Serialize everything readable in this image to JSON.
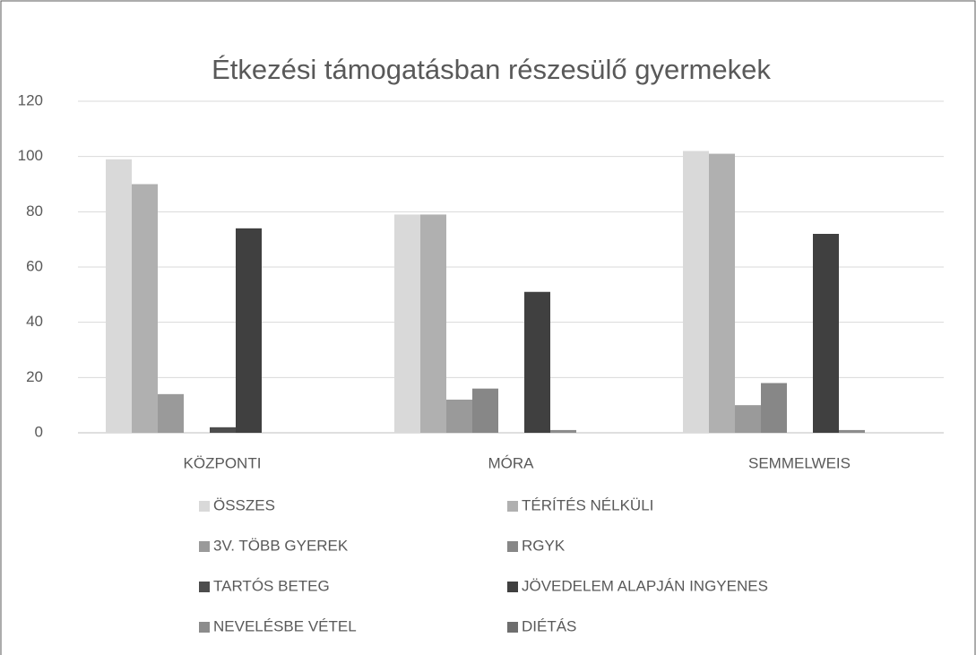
{
  "chart_data": {
    "type": "bar",
    "title": "Étkezési támogatásban részesülő gyermekek",
    "categories": [
      "KÖZPONTI",
      "MÓRA",
      "SEMMELWEIS"
    ],
    "series": [
      {
        "name": "ÖSSZES",
        "color": "#d9d9d9",
        "values": [
          99,
          79,
          102
        ]
      },
      {
        "name": "TÉRÍTÉS NÉLKÜLI",
        "color": "#b0b0b0",
        "values": [
          90,
          79,
          101
        ]
      },
      {
        "name": "3V. TÖBB GYEREK",
        "color": "#9a9a9a",
        "values": [
          14,
          12,
          10
        ]
      },
      {
        "name": "RGYK",
        "color": "#878787",
        "values": [
          0,
          16,
          18
        ]
      },
      {
        "name": "TARTÓS BETEG",
        "color": "#4d4d4d",
        "values": [
          2,
          0,
          0
        ]
      },
      {
        "name": "JÖVEDELEM ALAPJÁN INGYENES",
        "color": "#404040",
        "values": [
          74,
          51,
          72
        ]
      },
      {
        "name": "NEVELÉSBE VÉTEL",
        "color": "#8c8c8c",
        "values": [
          0,
          1,
          1
        ]
      },
      {
        "name": "DIÉTÁS",
        "color": "#6e6e6e",
        "values": [
          0,
          0,
          0
        ]
      }
    ],
    "ylim": [
      0,
      120
    ],
    "yticks": [
      0,
      20,
      40,
      60,
      80,
      100,
      120
    ],
    "grid": true,
    "legend": "bottom"
  }
}
